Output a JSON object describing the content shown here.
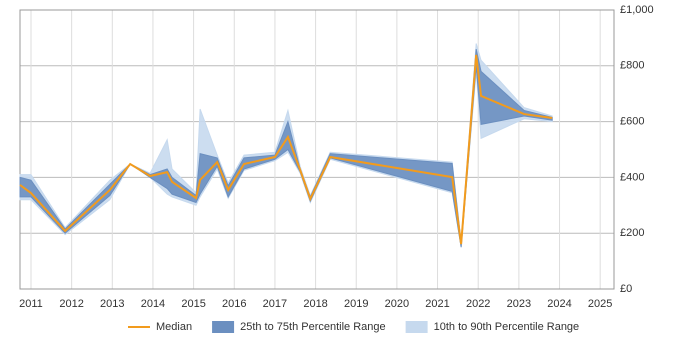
{
  "chart_data": {
    "type": "line-band",
    "x": [
      2010.73,
      2011.0,
      2011.84,
      2012.94,
      2013.44,
      2013.93,
      2014.35,
      2014.47,
      2015.06,
      2015.16,
      2015.58,
      2015.85,
      2016.24,
      2017.0,
      2017.32,
      2017.62,
      2017.87,
      2018.36,
      2021.36,
      2021.58,
      2021.95,
      2022.07,
      2023.13,
      2023.82
    ],
    "xlim": [
      2010.73,
      2025.34
    ],
    "xticks": [
      2011,
      2012,
      2013,
      2014,
      2015,
      2016,
      2017,
      2018,
      2019,
      2020,
      2021,
      2022,
      2023,
      2024,
      2025
    ],
    "ylim": [
      0,
      1000
    ],
    "yticks": [
      {
        "value": 0,
        "label": "£0"
      },
      {
        "value": 200,
        "label": "£200"
      },
      {
        "value": 400,
        "label": "£400"
      },
      {
        "value": 600,
        "label": "£600"
      },
      {
        "value": 800,
        "label": "£800"
      },
      {
        "value": 1000,
        "label": "£1,000"
      }
    ],
    "grid": true,
    "bands": [
      {
        "name": "10th to 90th Percentile Range",
        "color": "#c6d9ee",
        "low": [
          320,
          320,
          195,
          320,
          448,
          400,
          340,
          330,
          300,
          330,
          430,
          325,
          425,
          460,
          490,
          415,
          310,
          465,
          345,
          150,
          780,
          540,
          610,
          600
        ],
        "high": [
          410,
          410,
          220,
          390,
          448,
          415,
          535,
          430,
          345,
          645,
          480,
          380,
          480,
          490,
          640,
          440,
          335,
          490,
          455,
          170,
          880,
          820,
          650,
          620
        ]
      },
      {
        "name": "25th to 75th Percentile Range",
        "color": "#6b8fc0",
        "low": [
          330,
          330,
          200,
          335,
          448,
          400,
          360,
          340,
          310,
          340,
          440,
          330,
          430,
          465,
          500,
          420,
          315,
          470,
          350,
          150,
          800,
          590,
          620,
          605
        ],
        "high": [
          400,
          390,
          215,
          375,
          448,
          410,
          430,
          400,
          335,
          485,
          470,
          370,
          470,
          480,
          600,
          430,
          330,
          485,
          450,
          165,
          860,
          780,
          640,
          615
        ]
      }
    ],
    "series": [
      {
        "name": "Median",
        "color": "#f29b1d",
        "values": [
          373,
          344,
          208,
          355,
          448,
          405,
          419,
          384,
          326,
          391,
          455,
          355,
          448,
          473,
          545,
          427,
          323,
          473,
          401,
          161,
          839,
          692,
          627,
          613
        ]
      }
    ]
  }
}
